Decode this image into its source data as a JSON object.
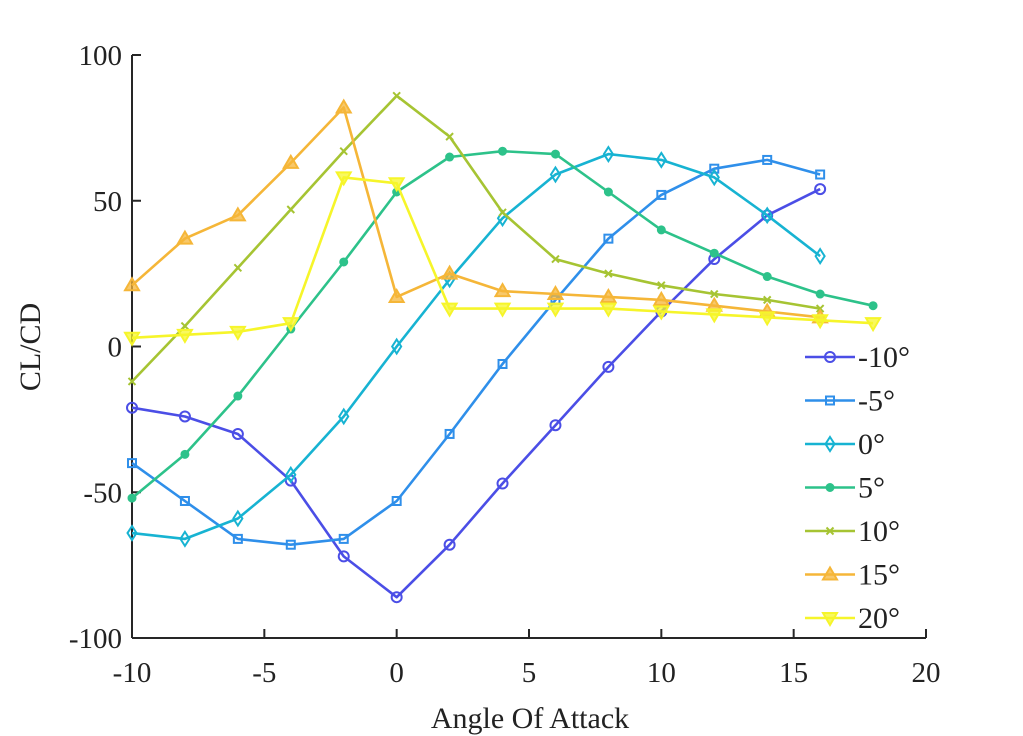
{
  "chart_data": {
    "type": "line",
    "title": "",
    "xlabel": "Angle Of Attack",
    "ylabel": "CL/CD",
    "xlim": [
      -10,
      20
    ],
    "ylim": [
      -100,
      100
    ],
    "xticks": [
      -10,
      -5,
      0,
      5,
      10,
      15,
      20
    ],
    "yticks": [
      -100,
      -50,
      0,
      50,
      100
    ],
    "xtick_labels": [
      "-10",
      "-5",
      "0",
      "5",
      "10",
      "15",
      "20"
    ],
    "ytick_labels": [
      "-100",
      "-50",
      "0",
      "50",
      "100"
    ],
    "grid": false,
    "legend_position": "right",
    "series": [
      {
        "name": "-10°",
        "color": "#4b4ee6",
        "marker": "circle",
        "x": [
          -10,
          -8,
          -6,
          -4,
          -2,
          0,
          2,
          4,
          6,
          8,
          10,
          12,
          14,
          16
        ],
        "y": [
          -21,
          -24,
          -30,
          -46,
          -72,
          -86,
          -68,
          -47,
          -27,
          -7,
          12,
          30,
          45,
          54
        ]
      },
      {
        "name": "-5°",
        "color": "#2f8fea",
        "marker": "square",
        "x": [
          -10,
          -8,
          -6,
          -4,
          -2,
          0,
          2,
          4,
          6,
          8,
          10,
          12,
          14,
          16
        ],
        "y": [
          -40,
          -53,
          -66,
          -68,
          -66,
          -53,
          -30,
          -6,
          16,
          37,
          52,
          61,
          64,
          59
        ]
      },
      {
        "name": "0°",
        "color": "#17b3d2",
        "marker": "diamond",
        "x": [
          -10,
          -8,
          -6,
          -4,
          -2,
          0,
          2,
          4,
          6,
          8,
          10,
          12,
          14,
          16
        ],
        "y": [
          -64,
          -66,
          -59,
          -44,
          -24,
          0,
          23,
          44,
          59,
          66,
          64,
          58,
          45,
          31
        ]
      },
      {
        "name": "5°",
        "color": "#2dc28a",
        "marker": "dot",
        "x": [
          -10,
          -8,
          -6,
          -4,
          -2,
          0,
          2,
          4,
          6,
          8,
          10,
          12,
          14,
          16,
          18
        ],
        "y": [
          -52,
          -37,
          -17,
          6,
          29,
          53,
          65,
          67,
          66,
          53,
          40,
          32,
          24,
          18,
          14
        ]
      },
      {
        "name": "10°",
        "color": "#a6c433",
        "marker": "x",
        "x": [
          -10,
          -8,
          -6,
          -4,
          -2,
          0,
          2,
          4,
          6,
          8,
          10,
          12,
          14,
          16
        ],
        "y": [
          -12,
          7,
          27,
          47,
          67,
          86,
          72,
          46,
          30,
          25,
          21,
          18,
          16,
          13
        ]
      },
      {
        "name": "15°",
        "color": "#f5b638",
        "marker": "triangle-up",
        "x": [
          -10,
          -8,
          -6,
          -4,
          -2,
          0,
          2,
          4,
          6,
          8,
          10,
          12,
          14,
          16
        ],
        "y": [
          21,
          37,
          45,
          63,
          82,
          17,
          25,
          19,
          18,
          17,
          16,
          14,
          12,
          10
        ]
      },
      {
        "name": "20°",
        "color": "#f6f52a",
        "marker": "triangle-down",
        "x": [
          -10,
          -8,
          -6,
          -4,
          -2,
          0,
          2,
          4,
          6,
          8,
          10,
          12,
          14,
          16,
          18
        ],
        "y": [
          3,
          4,
          5,
          8,
          58,
          56,
          13,
          13,
          13,
          13,
          12,
          11,
          10,
          9,
          8
        ]
      }
    ]
  }
}
